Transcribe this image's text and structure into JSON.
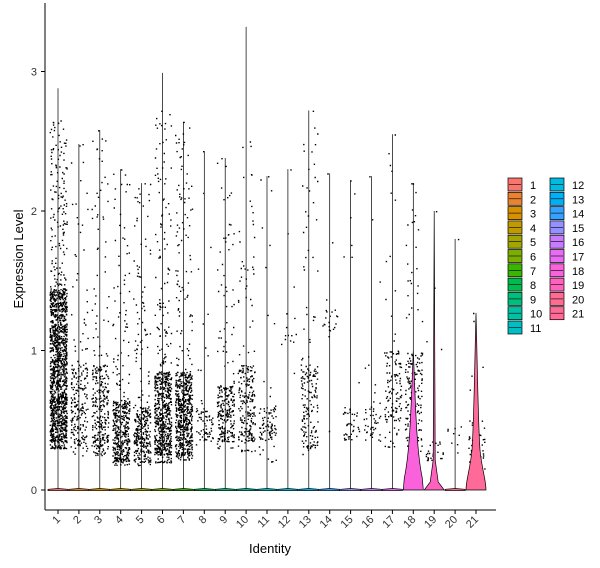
{
  "chart_data": {
    "type": "violin",
    "title": "",
    "xlabel": "Identity",
    "ylabel": "Expression Level",
    "ylim": [
      -0.15,
      3.4
    ],
    "yticks": [
      0,
      1,
      2,
      3
    ],
    "grid": false,
    "legend_position": "right",
    "legend_title": "",
    "categories": [
      "1",
      "2",
      "3",
      "4",
      "5",
      "6",
      "7",
      "8",
      "9",
      "10",
      "11",
      "12",
      "13",
      "14",
      "15",
      "16",
      "17",
      "18",
      "19",
      "20",
      "21"
    ],
    "colors": [
      "#F8766D",
      "#EA8331",
      "#D89000",
      "#C09B00",
      "#A3A500",
      "#7CAE00",
      "#39B600",
      "#00BB4E",
      "#00BF7D",
      "#00C1A3",
      "#00BFC4",
      "#00BAE0",
      "#00B0F6",
      "#35A2FF",
      "#9590FF",
      "#C77CFF",
      "#E76BF3",
      "#FA62DB",
      "#FF62BC",
      "#FF6C91",
      "#FF6A98"
    ],
    "series": [
      {
        "name": "1",
        "max": 2.88,
        "jitter_values": [
          0.3,
          2.65
        ],
        "dense_band": [
          0.35,
          1.45
        ]
      },
      {
        "name": "2",
        "max": 2.48,
        "jitter_values": [
          0.25,
          2.48
        ],
        "dense_band": [
          0.3,
          0.9
        ]
      },
      {
        "name": "3",
        "max": 2.58,
        "jitter_values": [
          0.25,
          2.58
        ],
        "dense_band": [
          0.3,
          0.9
        ]
      },
      {
        "name": "4",
        "max": 2.3,
        "jitter_values": [
          0.18,
          2.3
        ],
        "dense_band": [
          0.2,
          0.65
        ]
      },
      {
        "name": "5",
        "max": 2.2,
        "jitter_values": [
          0.18,
          2.2
        ],
        "dense_band": [
          0.2,
          0.6
        ]
      },
      {
        "name": "6",
        "max": 2.99,
        "jitter_values": [
          0.2,
          2.72
        ],
        "dense_band": [
          0.25,
          0.85
        ]
      },
      {
        "name": "7",
        "max": 2.64,
        "jitter_values": [
          0.22,
          2.64
        ],
        "dense_band": [
          0.25,
          0.85
        ]
      },
      {
        "name": "8",
        "max": 2.43,
        "jitter_values": [
          0.3,
          2.43
        ],
        "dense_band": [
          0.35,
          0.6
        ]
      },
      {
        "name": "9",
        "max": 2.38,
        "jitter_values": [
          0.3,
          2.38
        ],
        "dense_band": [
          0.35,
          0.75
        ]
      },
      {
        "name": "10",
        "max": 3.32,
        "jitter_values": [
          0.28,
          2.5
        ],
        "dense_band": [
          0.35,
          0.9
        ]
      },
      {
        "name": "11",
        "max": 2.25,
        "jitter_values": [
          0.2,
          2.25
        ],
        "dense_band": [
          0.35,
          0.6
        ]
      },
      {
        "name": "12",
        "max": 2.3,
        "jitter_values": [
          0.7,
          2.3
        ],
        "dense_band": [
          1.0,
          1.3
        ]
      },
      {
        "name": "13",
        "max": 2.72,
        "jitter_values": [
          0.25,
          2.72
        ],
        "dense_band": [
          0.3,
          0.9
        ]
      },
      {
        "name": "14",
        "max": 2.27,
        "jitter_values": [
          0.4,
          2.27
        ],
        "dense_band": [
          1.1,
          1.3
        ]
      },
      {
        "name": "15",
        "max": 2.22,
        "jitter_values": [
          0.3,
          2.22
        ],
        "dense_band": [
          0.35,
          0.6
        ]
      },
      {
        "name": "16",
        "max": 2.25,
        "jitter_values": [
          0.3,
          2.25
        ],
        "dense_band": [
          0.35,
          0.6
        ]
      },
      {
        "name": "17",
        "max": 2.55,
        "jitter_values": [
          0.3,
          2.55
        ],
        "dense_band": [
          0.5,
          1.0
        ]
      },
      {
        "name": "18",
        "max": 2.2,
        "jitter_values": [
          0.25,
          2.2
        ],
        "dense_band": [
          0.35,
          1.0
        ]
      },
      {
        "name": "19",
        "max": 2.0,
        "jitter_values": [
          0.2,
          2.0
        ],
        "dense_band": [
          0.2,
          0.35
        ]
      },
      {
        "name": "20",
        "max": 1.8,
        "jitter_values": [
          0.25,
          1.8
        ],
        "dense_band": [
          0.3,
          0.5
        ]
      },
      {
        "name": "21",
        "max": 1.27,
        "jitter_values": [
          0.15,
          1.27
        ],
        "dense_band": [
          0.2,
          0.5
        ]
      }
    ]
  }
}
